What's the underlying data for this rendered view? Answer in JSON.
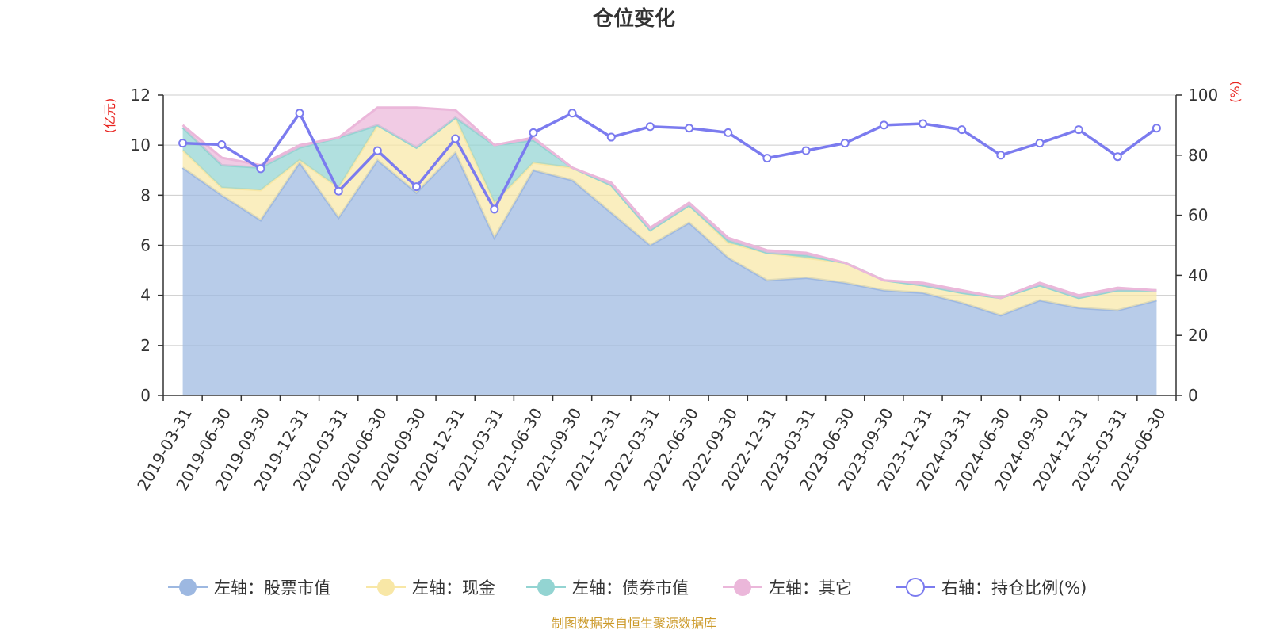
{
  "chart_data": {
    "type": "area",
    "title": "仓位变化",
    "left_axis": {
      "unit": "(亿元)",
      "ylim": [
        0,
        12
      ],
      "ticks": [
        0,
        2,
        4,
        6,
        8,
        10,
        12
      ]
    },
    "right_axis": {
      "unit": "(%)",
      "ylim": [
        0,
        100
      ],
      "ticks": [
        0,
        20,
        40,
        60,
        80,
        100
      ]
    },
    "grid": true,
    "legend_position": "bottom",
    "categories": [
      "2019-03-31",
      "2019-06-30",
      "2019-09-30",
      "2019-12-31",
      "2020-03-31",
      "2020-06-30",
      "2020-09-30",
      "2020-12-31",
      "2021-03-31",
      "2021-06-30",
      "2021-09-30",
      "2021-12-31",
      "2022-03-31",
      "2022-06-30",
      "2022-09-30",
      "2022-12-31",
      "2023-03-31",
      "2023-06-30",
      "2023-09-30",
      "2023-12-31",
      "2024-03-31",
      "2024-06-30",
      "2024-09-30",
      "2024-12-31",
      "2025-03-31",
      "2025-06-30"
    ],
    "series": [
      {
        "name": "左轴：股票市值",
        "axis": "left",
        "stacked": true,
        "color": "#9db8e1",
        "values": [
          9.1,
          8.0,
          7.0,
          9.3,
          7.1,
          9.4,
          8.1,
          9.7,
          6.3,
          9.0,
          8.6,
          7.3,
          6.0,
          6.9,
          5.5,
          4.6,
          4.7,
          4.5,
          4.2,
          4.1,
          3.7,
          3.2,
          3.8,
          3.5,
          3.4,
          3.8
        ]
      },
      {
        "name": "左轴：现金",
        "axis": "left",
        "stacked": true,
        "color": "#f8e7a6",
        "values": [
          0.7,
          0.3,
          1.2,
          0.1,
          1.2,
          1.4,
          1.8,
          1.4,
          1.4,
          0.3,
          0.5,
          1.1,
          0.6,
          0.7,
          0.6,
          1.1,
          0.8,
          0.8,
          0.4,
          0.3,
          0.4,
          0.7,
          0.6,
          0.4,
          0.8,
          0.4
        ]
      },
      {
        "name": "左轴：债券市值",
        "axis": "left",
        "stacked": true,
        "color": "#93d4d2",
        "values": [
          0.9,
          0.9,
          0.9,
          0.5,
          2.0,
          0.0,
          0.0,
          0.0,
          2.3,
          0.9,
          0.0,
          0.0,
          0.0,
          0.0,
          0.1,
          0.0,
          0.1,
          0.0,
          0.0,
          0.0,
          0.0,
          0.0,
          0.0,
          0.0,
          0.0,
          0.0
        ]
      },
      {
        "name": "左轴：其它",
        "axis": "left",
        "stacked": true,
        "color": "#ebb7da",
        "values": [
          0.1,
          0.3,
          0.1,
          0.1,
          0.0,
          0.7,
          1.6,
          0.3,
          0.0,
          0.1,
          0.0,
          0.1,
          0.1,
          0.1,
          0.1,
          0.1,
          0.1,
          0.0,
          0.0,
          0.1,
          0.1,
          0.0,
          0.1,
          0.1,
          0.1,
          0.0
        ]
      },
      {
        "name": "右轴：持仓比例(%)",
        "axis": "right",
        "type": "line",
        "color": "#7b7bef",
        "values": [
          84.0,
          83.5,
          75.5,
          94.0,
          68.0,
          81.5,
          69.5,
          85.5,
          62.0,
          87.5,
          94.0,
          86.0,
          89.5,
          89.0,
          87.5,
          79.0,
          81.5,
          84.0,
          90.0,
          90.5,
          88.5,
          80.0,
          84.0,
          88.5,
          79.5,
          89.0
        ]
      }
    ]
  },
  "footer": {
    "source": "制图数据来自恒生聚源数据库",
    "source_color": "#cc9a2a"
  },
  "colors": {
    "axis_unit": "#e8231f",
    "grid": "#cccccc",
    "axis_line": "#333333"
  }
}
